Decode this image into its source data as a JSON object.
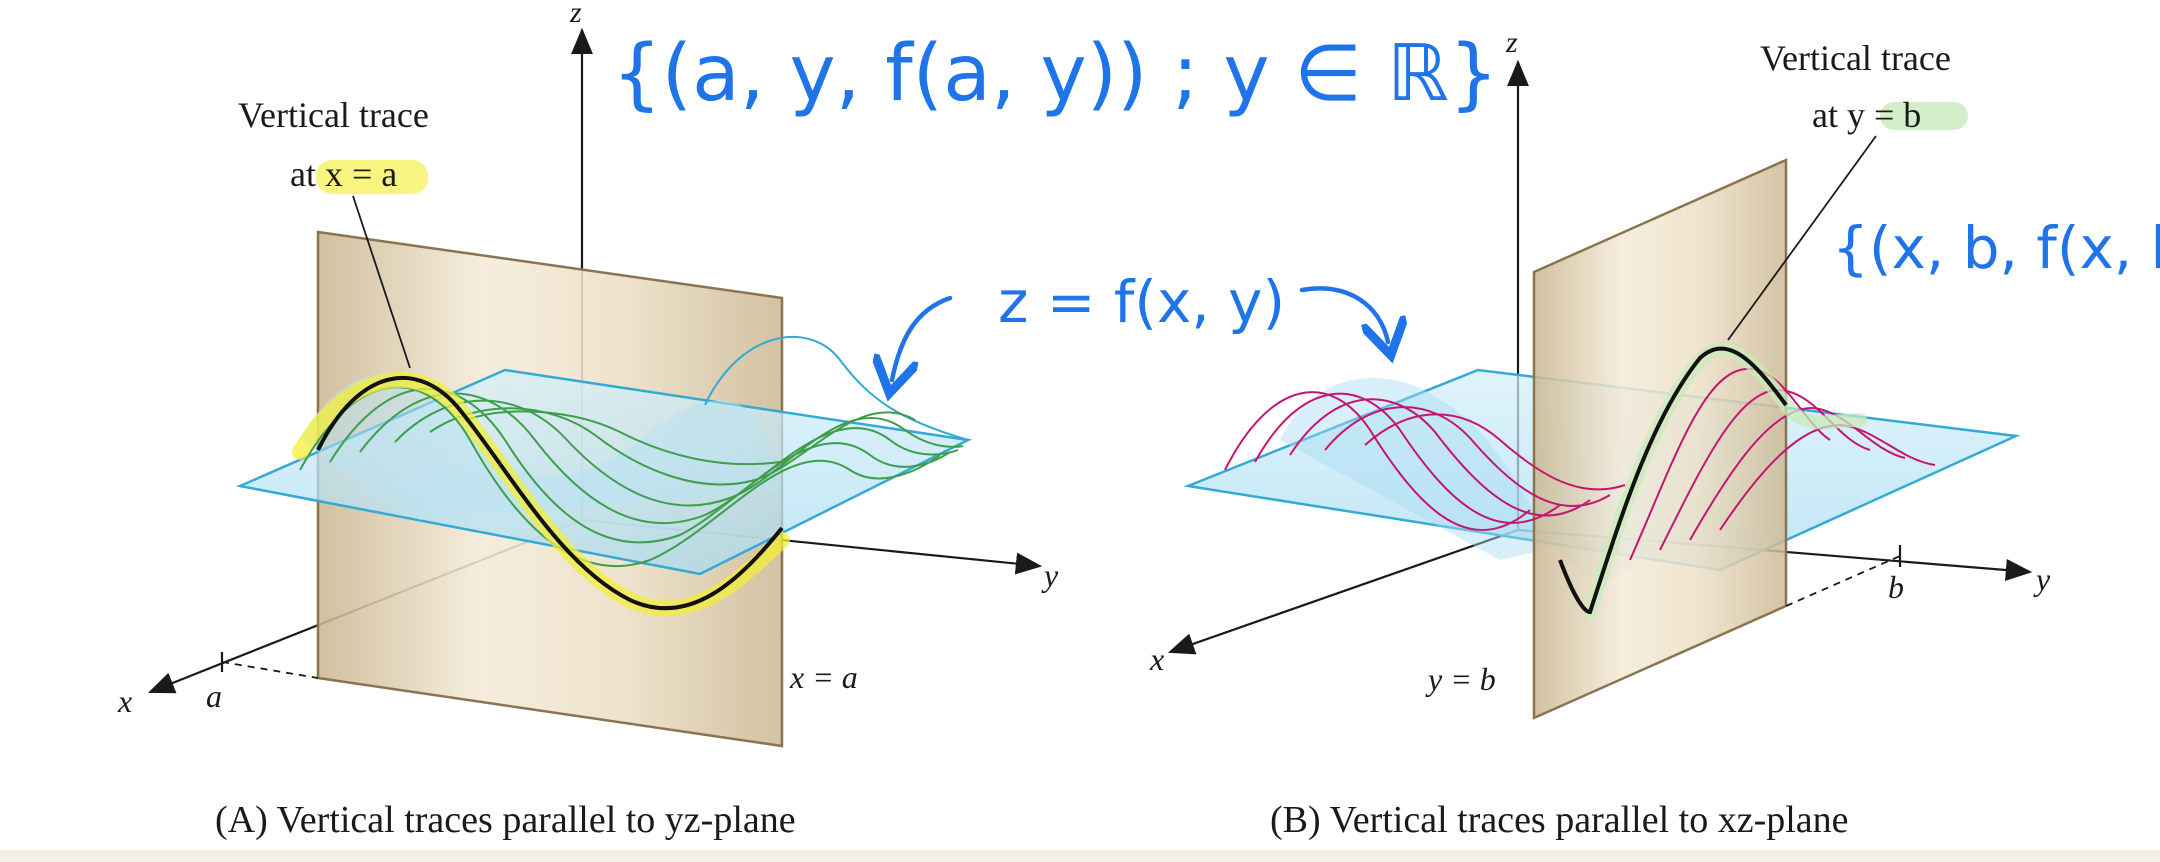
{
  "panel_a": {
    "z_label": "z",
    "y_label": "y",
    "x_label": "x",
    "a_tick": "a",
    "plane_label": "x = a",
    "trace_label_line1": "Vertical trace",
    "trace_label_line2": "at x = a",
    "caption": "(A)  Vertical traces parallel to yz-plane"
  },
  "panel_b": {
    "z_label": "z",
    "y_label": "y",
    "x_label": "x",
    "b_tick": "b",
    "plane_label": "y = b",
    "trace_label_line1": "Vertical trace",
    "trace_label_line2": "at y = b",
    "caption": "(B)  Vertical traces parallel to xz-plane"
  },
  "annotations": {
    "set_a": "{(a, y, f(a, y)) ; y ∈ ℝ}",
    "set_b": "{(x, b, f(x, b",
    "surface": "z = f(x, y)"
  },
  "colors": {
    "handwriting": "#1e74e8",
    "plane": "#d9c8a5",
    "surface": "#bfe5f5",
    "traces_a": "#3e9e4c",
    "traces_b": "#c4166f",
    "highlight_yellow": "#f3ee3a",
    "highlight_green": "#c8ebbc"
  }
}
